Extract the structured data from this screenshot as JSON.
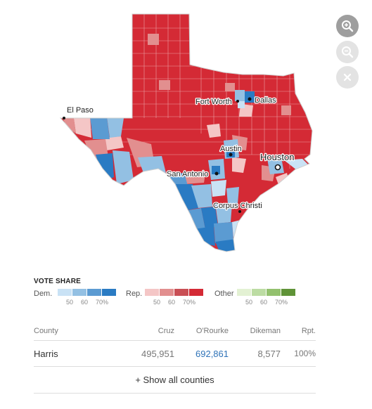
{
  "map": {
    "state": "Texas",
    "colors": {
      "dem_light": "#c9e2f5",
      "dem_mid": "#93c0e3",
      "dem_strong": "#5b9bd2",
      "dem_dark": "#2a7bc3",
      "rep_light": "#f4c6c6",
      "rep_mid": "#e28f8f",
      "rep_strong": "#c94f55",
      "rep_dark": "#d42a35",
      "other_light": "#e3f1d3",
      "other_mid": "#bcdca3",
      "other_strong": "#93c16e",
      "other_dark": "#5f9337",
      "county_border": "#ffffff",
      "state_border": "#cfcfcf"
    },
    "cities": [
      {
        "name": "El Paso"
      },
      {
        "name": "Fort Worth"
      },
      {
        "name": "Dallas"
      },
      {
        "name": "Austin"
      },
      {
        "name": "Houston"
      },
      {
        "name": "San Antonio"
      },
      {
        "name": "Corpus Christi"
      }
    ]
  },
  "controls": {
    "zoom_in_icon": "zoom-in-icon",
    "zoom_out_icon": "zoom-out-icon",
    "close_icon": "close-icon"
  },
  "legend": {
    "title": "VOTE SHARE",
    "groups": [
      {
        "name": "Dem.",
        "ticks": [
          "50",
          "60",
          "70%"
        ],
        "colors": [
          "#c9e2f5",
          "#93c0e3",
          "#5b9bd2",
          "#2a7bc3"
        ]
      },
      {
        "name": "Rep.",
        "ticks": [
          "50",
          "60",
          "70%"
        ],
        "colors": [
          "#f4c6c6",
          "#e28f8f",
          "#c94f55",
          "#d42a35"
        ]
      },
      {
        "name": "Other",
        "ticks": [
          "50",
          "60",
          "70%"
        ],
        "colors": [
          "#e3f1d3",
          "#bcdca3",
          "#93c16e",
          "#5f9337"
        ]
      }
    ]
  },
  "table": {
    "headers": {
      "county": "County",
      "cruz": "Cruz",
      "orourke": "O'Rourke",
      "dikeman": "Dikeman",
      "rpt": "Rpt."
    },
    "rows": [
      {
        "county": "Harris",
        "cruz": "495,951",
        "orourke": "692,861",
        "dikeman": "8,577",
        "rpt": "100%"
      }
    ],
    "show_all": "+ Show all counties"
  }
}
